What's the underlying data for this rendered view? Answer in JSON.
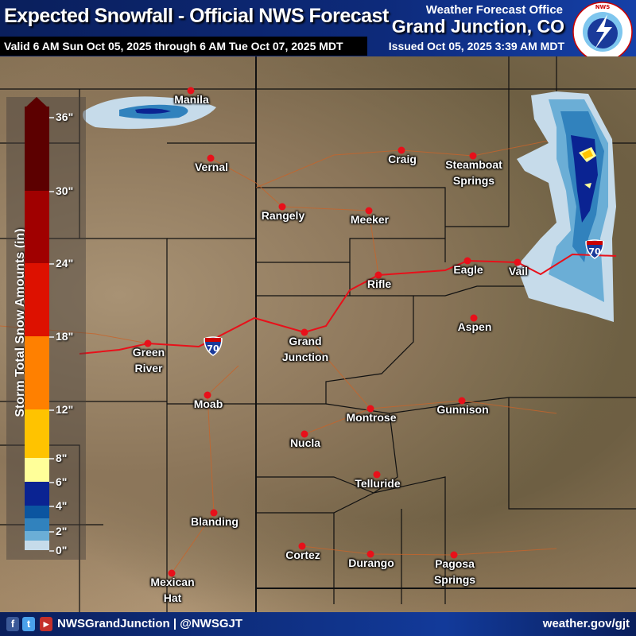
{
  "header": {
    "title": "Expected Snowfall - Official NWS Forecast",
    "valid": "Valid 6 AM Sun Oct 05, 2025 through 6 AM Tue Oct 07, 2025 MDT",
    "office_label": "Weather Forecast Office",
    "office_name": "Grand Junction, CO",
    "issued": "Issued Oct 05, 2025 3:39 AM MDT",
    "logo_text": "NATIONAL WEATHER SERVICE"
  },
  "legend": {
    "title": "Storm Total Snow Amounts (in)",
    "ticks": [
      "0\"",
      "2\"",
      "4\"",
      "6\"",
      "8\"",
      "12\"",
      "18\"",
      "24\"",
      "30\"",
      "36\""
    ],
    "bands": [
      {
        "from": 0,
        "to": 1,
        "color": "#c6dbea"
      },
      {
        "from": 1,
        "to": 2,
        "color": "#6baed6"
      },
      {
        "from": 2,
        "to": 3,
        "color": "#3182bd"
      },
      {
        "from": 3,
        "to": 4,
        "color": "#0b55a0"
      },
      {
        "from": 4,
        "to": 6,
        "color": "#0a2392"
      },
      {
        "from": 6,
        "to": 8,
        "color": "#ffff99"
      },
      {
        "from": 8,
        "to": 12,
        "color": "#ffc300"
      },
      {
        "from": 12,
        "to": 18,
        "color": "#ff8000"
      },
      {
        "from": 18,
        "to": 24,
        "color": "#dd1100"
      },
      {
        "from": 24,
        "to": 30,
        "color": "#a00000"
      },
      {
        "from": 30,
        "to": 36,
        "color": "#5c0000"
      }
    ]
  },
  "cities": [
    {
      "name": "Manila"
    },
    {
      "name": "Vernal"
    },
    {
      "name": "Craig"
    },
    {
      "name": "Steamboat",
      "name2": "Springs"
    },
    {
      "name": "Rangely"
    },
    {
      "name": "Meeker"
    },
    {
      "name": "Eagle"
    },
    {
      "name": "Vail"
    },
    {
      "name": "Rifle"
    },
    {
      "name": "Grand",
      "name2": "Junction"
    },
    {
      "name": "Aspen"
    },
    {
      "name": "Green",
      "name2": "River"
    },
    {
      "name": "Moab"
    },
    {
      "name": "Montrose"
    },
    {
      "name": "Gunnison"
    },
    {
      "name": "Nucla"
    },
    {
      "name": "Telluride"
    },
    {
      "name": "Blanding"
    },
    {
      "name": "Cortez"
    },
    {
      "name": "Durango"
    },
    {
      "name": "Pagosa",
      "name2": "Springs"
    },
    {
      "name": "Mexican",
      "name2": "Hat"
    }
  ],
  "interstate": {
    "number": "70",
    "color": "#e8101a"
  },
  "footer": {
    "handles": "NWSGrandJunction | @NWSGJT",
    "site": "weather.gov/gjt",
    "social_icons": [
      "facebook-icon",
      "twitter-icon",
      "youtube-icon"
    ]
  }
}
